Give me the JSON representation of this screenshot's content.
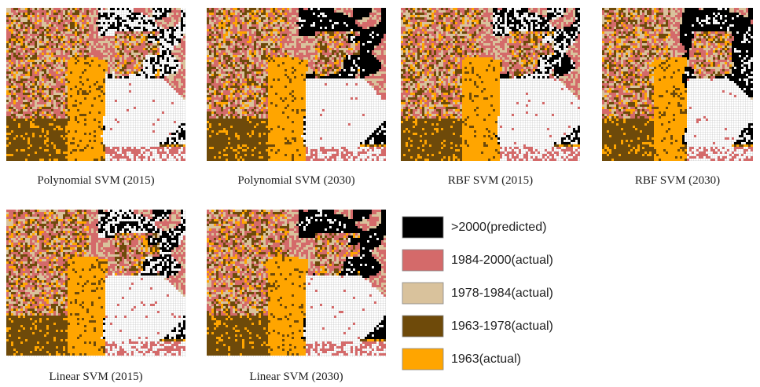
{
  "maps": [
    {
      "caption": "Polynomial SVM (2015)"
    },
    {
      "caption": "Polynomial SVM (2030)"
    },
    {
      "caption": "RBF SVM (2015)"
    },
    {
      "caption": "RBF SVM (2030)"
    },
    {
      "caption": "Linear SVM (2015)"
    },
    {
      "caption": "Linear SVM (2030)"
    }
  ],
  "legend": [
    {
      "label": ">2000(predicted)",
      "color": "#000000"
    },
    {
      "label": "1984-2000(actual)",
      "color": "#d46a6a"
    },
    {
      "label": "1978-1984(actual)",
      "color": "#d9c29c"
    },
    {
      "label": "1963-1978(actual)",
      "color": "#6e4a0a"
    },
    {
      "label": "1963(actual)",
      "color": "#ffa500"
    }
  ]
}
